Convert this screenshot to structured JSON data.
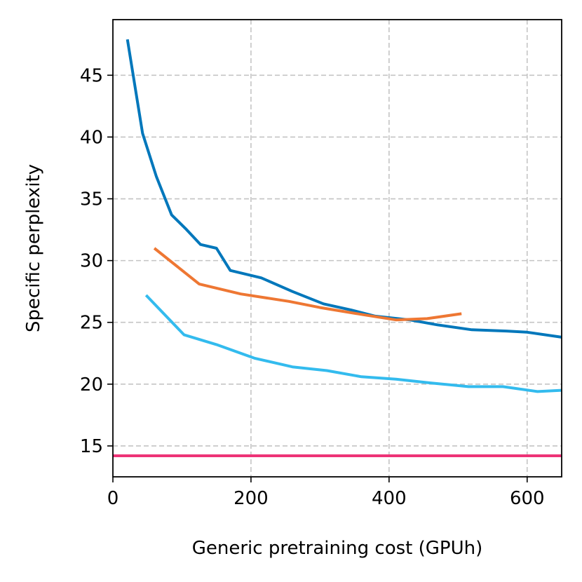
{
  "chart_data": {
    "type": "line",
    "xlabel": "Generic pretraining cost (GPUh)",
    "ylabel": "Specific perplexity",
    "xlim": [
      0,
      650
    ],
    "ylim": [
      12.5,
      49.5
    ],
    "xticks": [
      0,
      200,
      400,
      600
    ],
    "yticks": [
      15,
      20,
      25,
      30,
      35,
      40,
      45
    ],
    "grid": true,
    "series": [
      {
        "color": "#0077bb",
        "x": [
          21,
          43,
          63,
          85,
          105,
          127,
          150,
          170,
          215,
          260,
          305,
          345,
          380,
          430,
          470,
          520,
          570,
          600,
          650
        ],
        "y": [
          47.9,
          40.3,
          36.8,
          33.7,
          32.6,
          31.3,
          31.0,
          29.2,
          28.6,
          27.5,
          26.5,
          26.0,
          25.5,
          25.2,
          24.8,
          24.4,
          24.3,
          24.2,
          23.8
        ]
      },
      {
        "color": "#ee7733",
        "x": [
          60,
          125,
          185,
          255,
          300,
          365,
          410,
          455,
          505
        ],
        "y": [
          31.0,
          28.1,
          27.3,
          26.7,
          26.2,
          25.6,
          25.2,
          25.3,
          25.7
        ]
      },
      {
        "color": "#33bbee",
        "x": [
          48,
          103,
          150,
          205,
          260,
          310,
          360,
          410,
          460,
          515,
          565,
          615,
          650
        ],
        "y": [
          27.2,
          24.0,
          23.2,
          22.1,
          21.4,
          21.1,
          20.6,
          20.4,
          20.1,
          19.8,
          19.8,
          19.4,
          19.5
        ]
      },
      {
        "color": "#ee3377",
        "x": [
          0,
          650
        ],
        "y": [
          14.2,
          14.2
        ]
      }
    ]
  }
}
